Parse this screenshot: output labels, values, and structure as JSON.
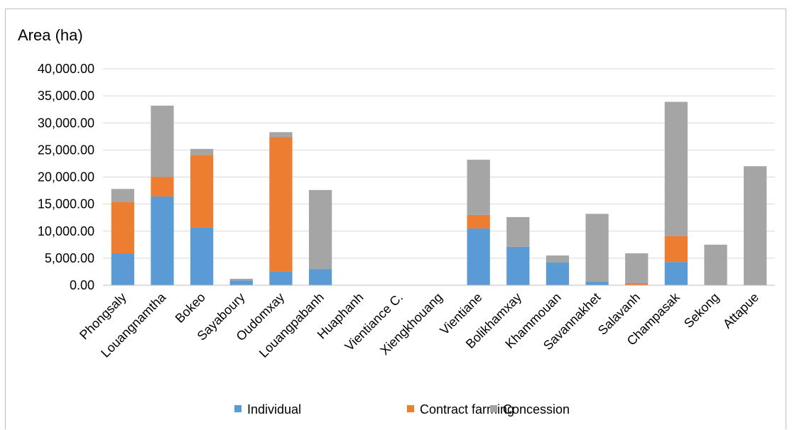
{
  "chart_data": {
    "type": "bar",
    "stacked": true,
    "ylabel": "Area (ha)",
    "xlabel": "",
    "ylim": [
      0,
      40000
    ],
    "ytick_step": 5000,
    "ytick_labels": [
      "0.00",
      "5,000.00",
      "10,000.00",
      "15,000.00",
      "20,000.00",
      "25,000.00",
      "30,000.00",
      "35,000.00",
      "40,000.00"
    ],
    "grid": true,
    "legend_position": "bottom",
    "categories": [
      "Phongsaly",
      "Louangnamtha",
      "Bokeo",
      "Sayaboury",
      "Oudomxay",
      "Louangpabanh",
      "Huaphanh",
      "Vientiance C.",
      "Xiengkhouang",
      "Vientiane",
      "Bolikhamxay",
      "Khammouan",
      "Savannakhet",
      "Salavanh",
      "Champasak",
      "Sekong",
      "Attapue"
    ],
    "series": [
      {
        "name": "Individual",
        "color": "#5b9bd5",
        "values": [
          5900,
          16400,
          10700,
          900,
          2600,
          3000,
          0,
          0,
          0,
          10500,
          7100,
          4200,
          700,
          0,
          4300,
          0,
          0
        ]
      },
      {
        "name": "Contract farming",
        "color": "#ed7d31",
        "values": [
          9500,
          3600,
          13400,
          0,
          24800,
          0,
          0,
          0,
          0,
          2500,
          0,
          0,
          0,
          400,
          4800,
          0,
          0
        ]
      },
      {
        "name": "Concession",
        "color": "#a5a5a5",
        "values": [
          2400,
          13200,
          1100,
          300,
          900,
          14600,
          0,
          0,
          0,
          10200,
          5500,
          1300,
          12500,
          5500,
          24800,
          7500,
          22000
        ]
      }
    ]
  }
}
